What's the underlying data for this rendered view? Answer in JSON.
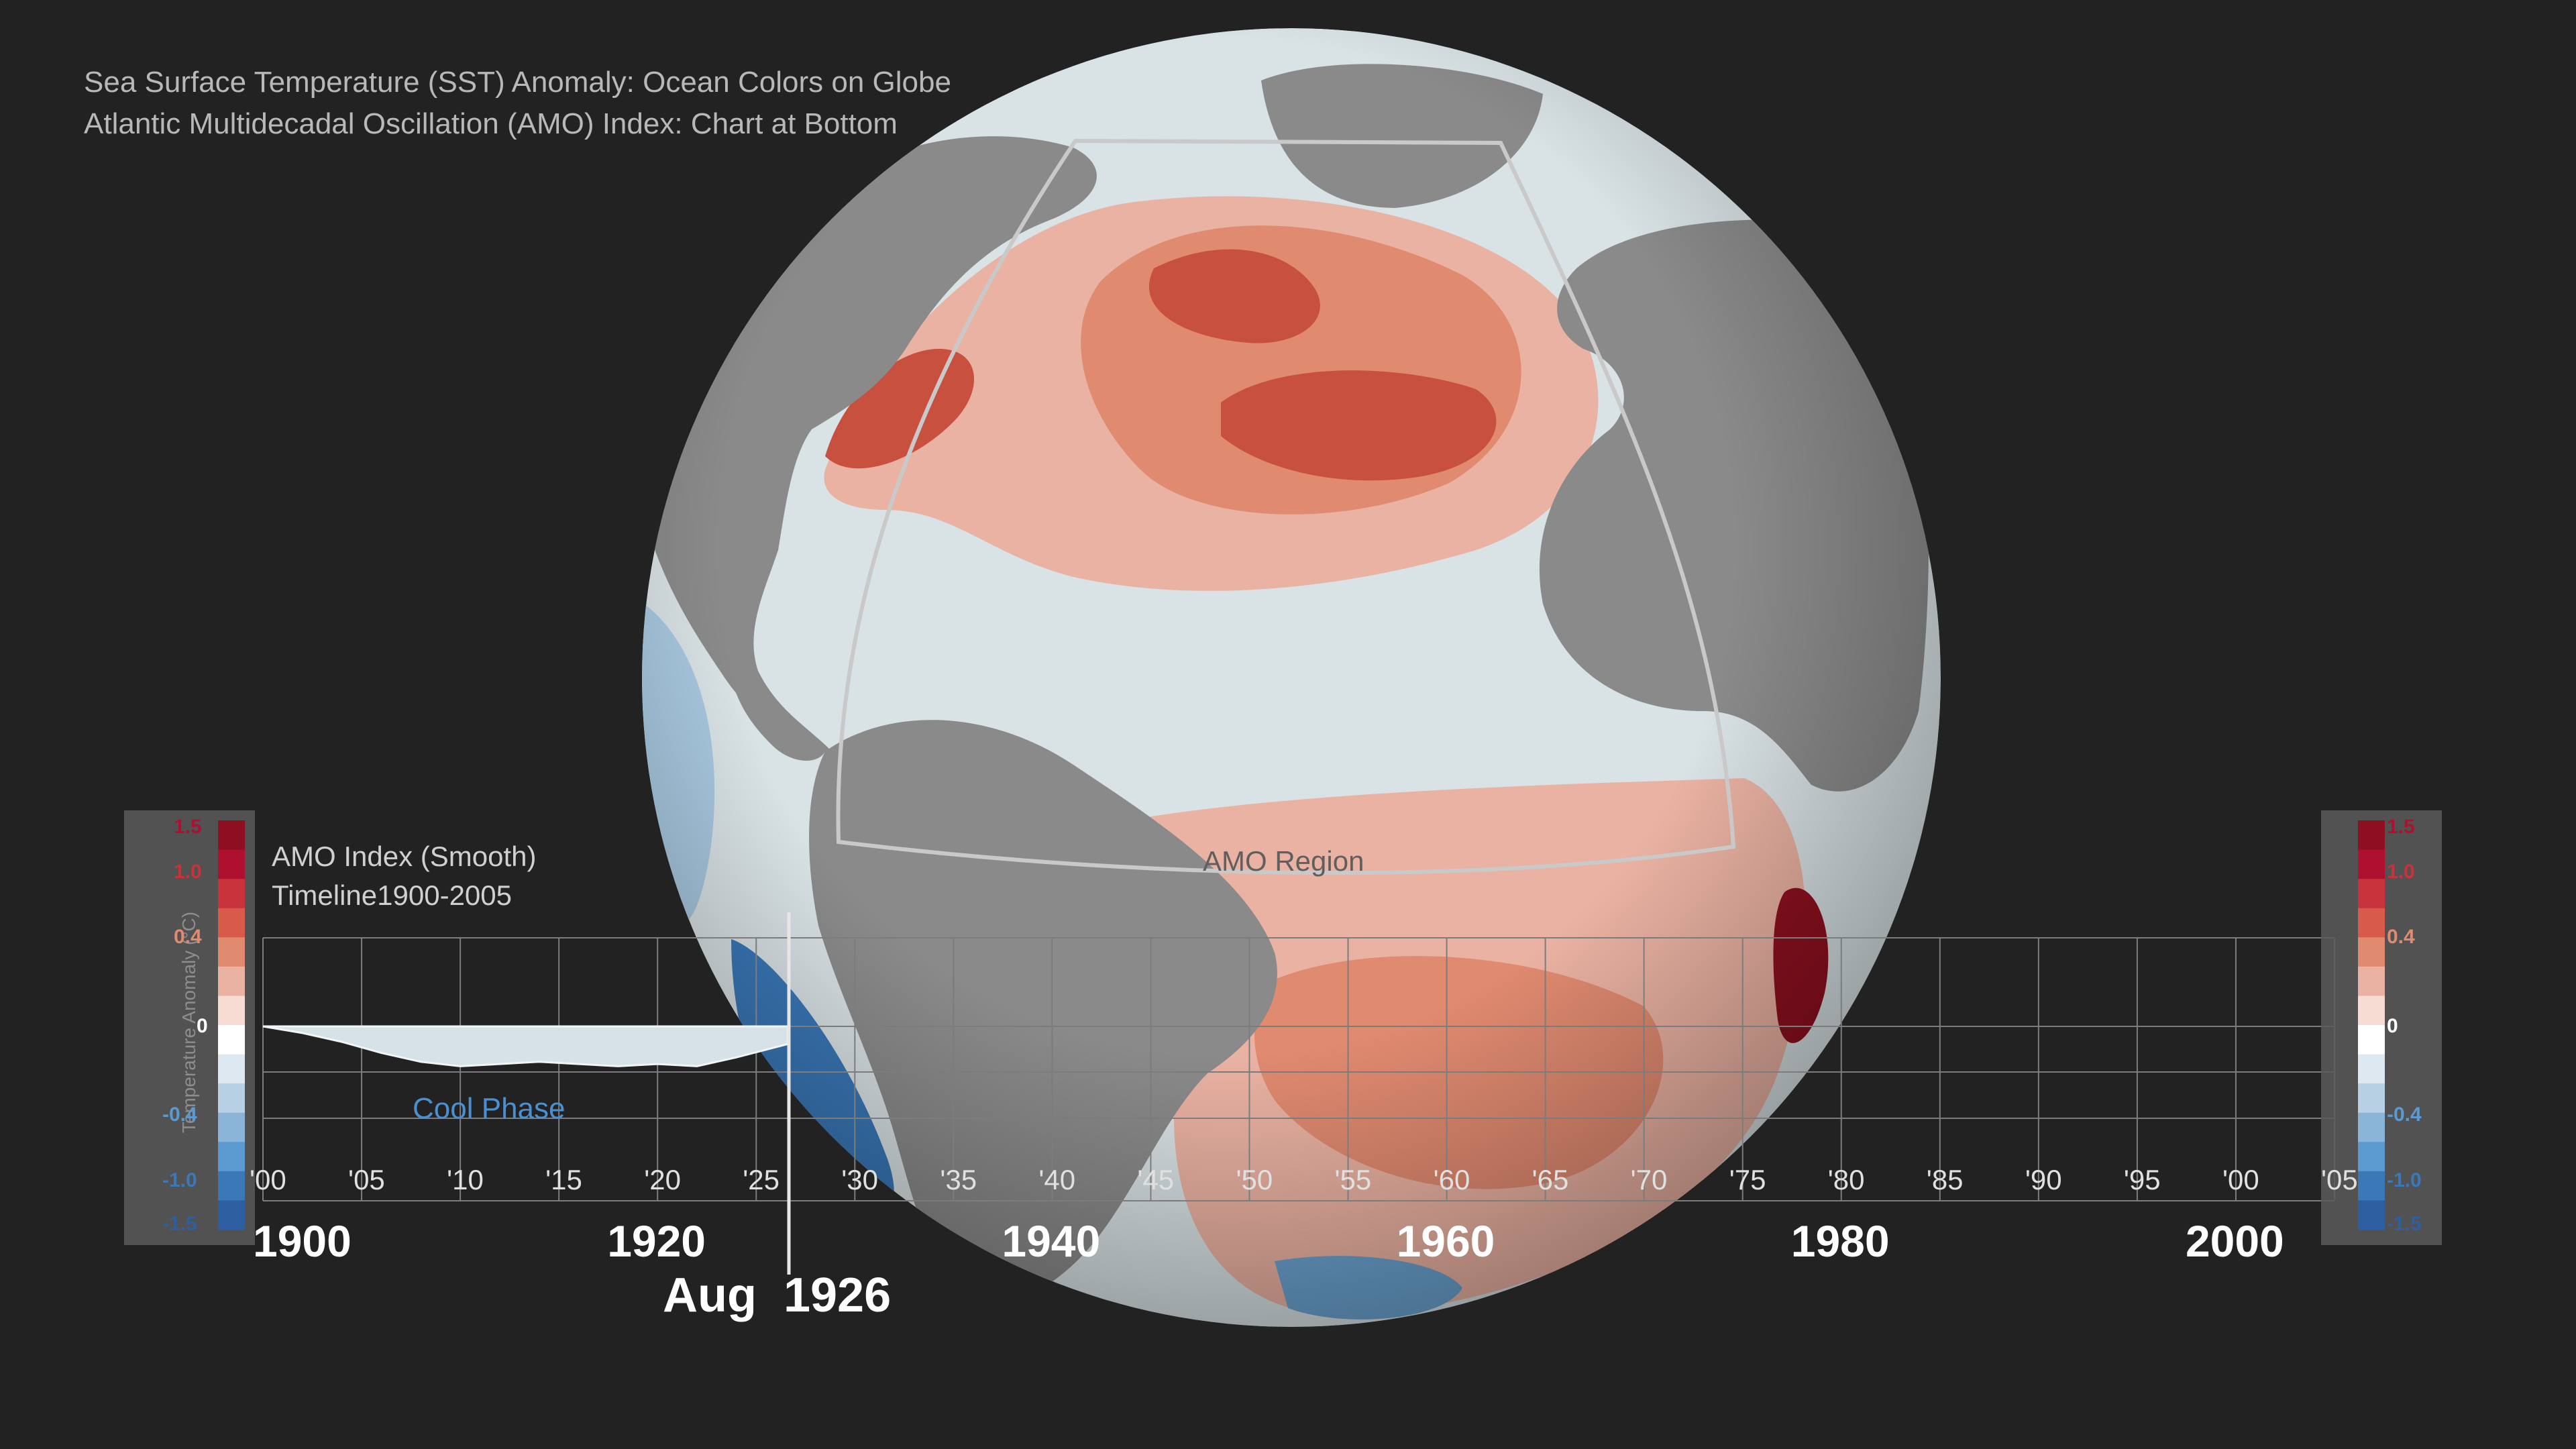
{
  "titles": {
    "line1": "Sea Surface Temperature (SST) Anomaly: Ocean Colors on Globe",
    "line2": "Atlantic Multidecadal Oscillation (AMO) Index: Chart at Bottom"
  },
  "globe": {
    "region_label": "AMO Region",
    "colors": {
      "land": "#8a8a8a",
      "ocean_neutral": "#d9e2e5",
      "warm": "#e08a70",
      "warmer": "#c8503e",
      "hot": "#8e1020",
      "cool": "#a8c8e0",
      "cold": "#3a78b8"
    }
  },
  "chart": {
    "header": {
      "title": "AMO Index (Smooth)",
      "subtitle": "Timeline1900-2005"
    },
    "y_axis_title": "Temperature Anomaly (°C)",
    "colorbar_left": {
      "ticks": [
        "1.5",
        "1.0",
        "0.4",
        "0",
        "-0.4",
        "-1.0",
        "-1.5"
      ],
      "tick_colors": [
        "#b01030",
        "#c8323a",
        "#e08a70",
        "#ffffff",
        "#5a9ad0",
        "#3a78b8",
        "#2e5fa0"
      ]
    },
    "colorbar_right": {
      "ticks": [
        "1.5",
        "1.0",
        "0.4",
        "0",
        "-0.4",
        "-1.0",
        "-1.5"
      ],
      "tick_colors": [
        "#b01030",
        "#c8323a",
        "#e08a70",
        "#ffffff",
        "#5a9ad0",
        "#3a78b8",
        "#2e5fa0"
      ]
    },
    "year_ticks": [
      "'00",
      "'05",
      "'10",
      "'15",
      "'20",
      "'25",
      "'30",
      "'35",
      "'40",
      "'45",
      "'50",
      "'55",
      "'60",
      "'65",
      "'70",
      "'75",
      "'80",
      "'85",
      "'90",
      "'95",
      "'00",
      "'05"
    ],
    "decade_labels": [
      "1900",
      "1920",
      "1940",
      "1960",
      "1980",
      "2000"
    ],
    "current_date": "Aug  1926",
    "phase_label": "Cool Phase",
    "chart_data": {
      "type": "area",
      "title": "AMO Index (Smooth)",
      "ylabel": "Temperature Anomaly (°C)",
      "xlim": [
        1900,
        2005
      ],
      "ylim": [
        -1.5,
        1.5
      ],
      "x": [
        1900,
        1902,
        1904,
        1906,
        1908,
        1910,
        1912,
        1914,
        1916,
        1918,
        1920,
        1922,
        1924,
        1926.6
      ],
      "values": [
        0.0,
        -0.03,
        -0.07,
        -0.12,
        -0.16,
        -0.18,
        -0.17,
        -0.16,
        -0.17,
        -0.18,
        -0.17,
        -0.18,
        -0.14,
        -0.08
      ]
    }
  }
}
